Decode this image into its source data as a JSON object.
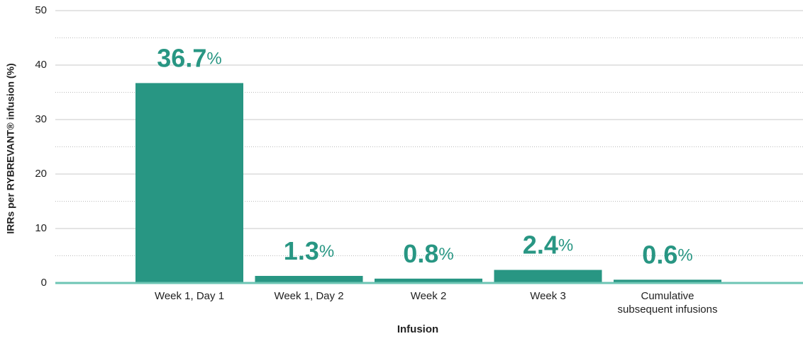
{
  "chart_data": {
    "type": "bar",
    "y_label": "IRRs per RYBREVANT® infusion (%)",
    "x_label": "Infusion",
    "categories": [
      "Week 1, Day 1",
      "Week 1, Day 2",
      "Week 2",
      "Week 3",
      "Cumulative subsequent infusions"
    ],
    "values": [
      36.7,
      1.3,
      0.8,
      2.4,
      0.6
    ],
    "value_labels": [
      "36.7%",
      "1.3%",
      "0.8%",
      "2.4%",
      "0.6%"
    ],
    "color": "#289683",
    "ylim": [
      0,
      50
    ],
    "yticks": [
      0,
      10,
      20,
      30,
      40,
      50
    ],
    "grid": true,
    "minor_grid": true
  }
}
